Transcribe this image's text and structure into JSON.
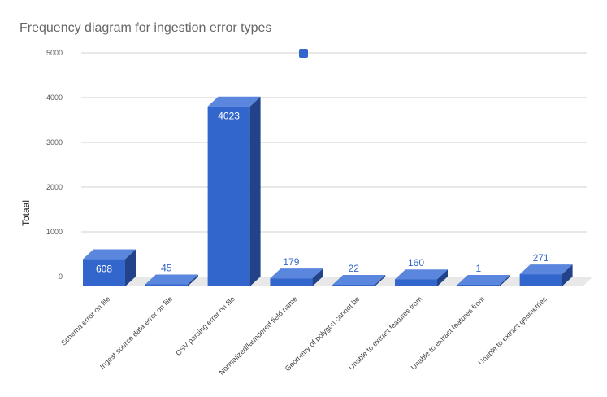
{
  "chart_data": {
    "type": "bar",
    "title": "Frequency diagram for ingestion error types",
    "ylabel": "Totaal",
    "xlabel": "",
    "categories": [
      "Schema error on file",
      "Ingest source data error on file",
      "CSV parsing error on file",
      "Normalized/laundered field name",
      "Geometry of polygon cannot be",
      "Unable to extract features from",
      "Unable to extract features from",
      "Unable to extract geometries"
    ],
    "values": [
      608,
      45,
      4023,
      179,
      22,
      160,
      1,
      271
    ],
    "data_labels": [
      "608",
      "45",
      "4023",
      "179",
      "22",
      "160",
      "1",
      "271"
    ],
    "yticks": [
      "0",
      "1000",
      "2000",
      "3000",
      "4000",
      "5000"
    ],
    "ylim": [
      0,
      5000
    ],
    "grid": true,
    "legend": "top-center",
    "colors": {
      "front": "#3366cc",
      "top": "#5b86dd",
      "side": "#22428a",
      "floor": "#e8e8e8",
      "grid": "#d0d0d0",
      "label_inside": "#ffffff",
      "label_outside": "#3366cc"
    }
  }
}
